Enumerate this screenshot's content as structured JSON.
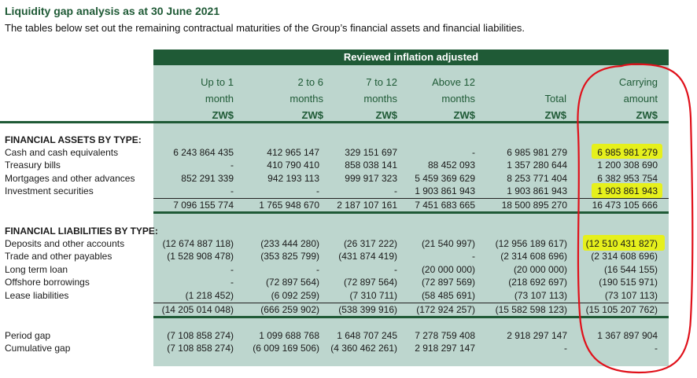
{
  "doc": {
    "title": "Liquidity gap analysis as at 30 June 2021",
    "subtitle": "The tables below set out the remaining contractual maturities of the Group’s financial assets and financial liabilities."
  },
  "table": {
    "band": "Reviewed inflation adjusted",
    "columns": [
      {
        "l1": "Up to 1",
        "l2": "month",
        "cur": "ZW$"
      },
      {
        "l1": "2 to 6",
        "l2": "months",
        "cur": "ZW$"
      },
      {
        "l1": "7 to 12",
        "l2": "months",
        "cur": "ZW$"
      },
      {
        "l1": "Above 12",
        "l2": "months",
        "cur": "ZW$"
      },
      {
        "l1": "",
        "l2": "Total",
        "cur": "ZW$"
      },
      {
        "l1": "Carrying",
        "l2": "amount",
        "cur": "ZW$"
      }
    ],
    "assets_heading": "FINANCIAL ASSETS BY TYPE:",
    "assets": [
      {
        "label": "Cash and cash equivalents",
        "v": [
          "6 243 864 435",
          "412 965 147",
          "329 151 697",
          "-",
          "6 985 981 279",
          "6 985 981 279"
        ]
      },
      {
        "label": "Treasury bills",
        "v": [
          "-",
          "410 790 410",
          "858 038 141",
          "88 452 093",
          "1 357 280 644",
          "1 200 308 690"
        ]
      },
      {
        "label": "Mortgages and other advances",
        "v": [
          "852 291 339",
          "942 193 113",
          "999 917 323",
          "5 459 369 629",
          "8 253 771 404",
          "6 382 953 754"
        ]
      },
      {
        "label": "Investment securities",
        "v": [
          "-",
          "-",
          "-",
          "1 903 861 943",
          "1 903 861 943",
          "1 903 861 943"
        ]
      }
    ],
    "assets_total": [
      "7 096 155 774",
      "1 765 948 670",
      "2 187 107 161",
      "7 451 683 665",
      "18 500 895 270",
      "16 473 105 666"
    ],
    "liabilities_heading": "FINANCIAL LIABILITIES BY TYPE:",
    "liabilities": [
      {
        "label": "Deposits and other accounts",
        "v": [
          "(12 674 887 118)",
          "(233 444 280)",
          "(26 317 222)",
          "(21 540 997)",
          "(12 956 189 617)",
          "(12 510 431 827)"
        ]
      },
      {
        "label": "Trade and other payables",
        "v": [
          "(1 528 908 478)",
          "(353 825 799)",
          "(431 874 419)",
          "-",
          "(2 314 608 696)",
          "(2 314 608 696)"
        ]
      },
      {
        "label": "Long term loan",
        "v": [
          "-",
          "-",
          "-",
          "(20 000 000)",
          "(20 000 000)",
          "(16 544 155)"
        ]
      },
      {
        "label": "Offshore borrowings",
        "v": [
          "-",
          "(72 897 564)",
          "(72 897 564)",
          "(72 897 569)",
          "(218 692 697)",
          "(190 515 971)"
        ]
      },
      {
        "label": "Lease liabilities",
        "v": [
          "(1 218 452)",
          "(6 092 259)",
          "(7 310 711)",
          "(58 485 691)",
          "(73 107 113)",
          "(73 107 113)"
        ]
      }
    ],
    "liabilities_total": [
      "(14 205 014 048)",
      "(666 259 902)",
      "(538 399 916)",
      "(172 924 257)",
      "(15 582 598 123)",
      "(15 105 207 762)"
    ],
    "gaps": [
      {
        "label": "Period gap",
        "v": [
          "(7 108 858 274)",
          "1 099 688 768",
          "1 648 707 245",
          "7 278 759 408",
          "2 918 297 147",
          "1 367 897 904"
        ]
      },
      {
        "label": "Cumulative gap",
        "v": [
          "(7 108 858 274)",
          "(6 009 169 506)",
          "(4 360 462 261)",
          "2 918 297 147",
          "-",
          "-"
        ]
      }
    ]
  },
  "colors": {
    "accent": "#1f5a36",
    "column_fill": "#bdd6ce",
    "highlight": "#e6f01c",
    "annotation": "#e0101a"
  }
}
